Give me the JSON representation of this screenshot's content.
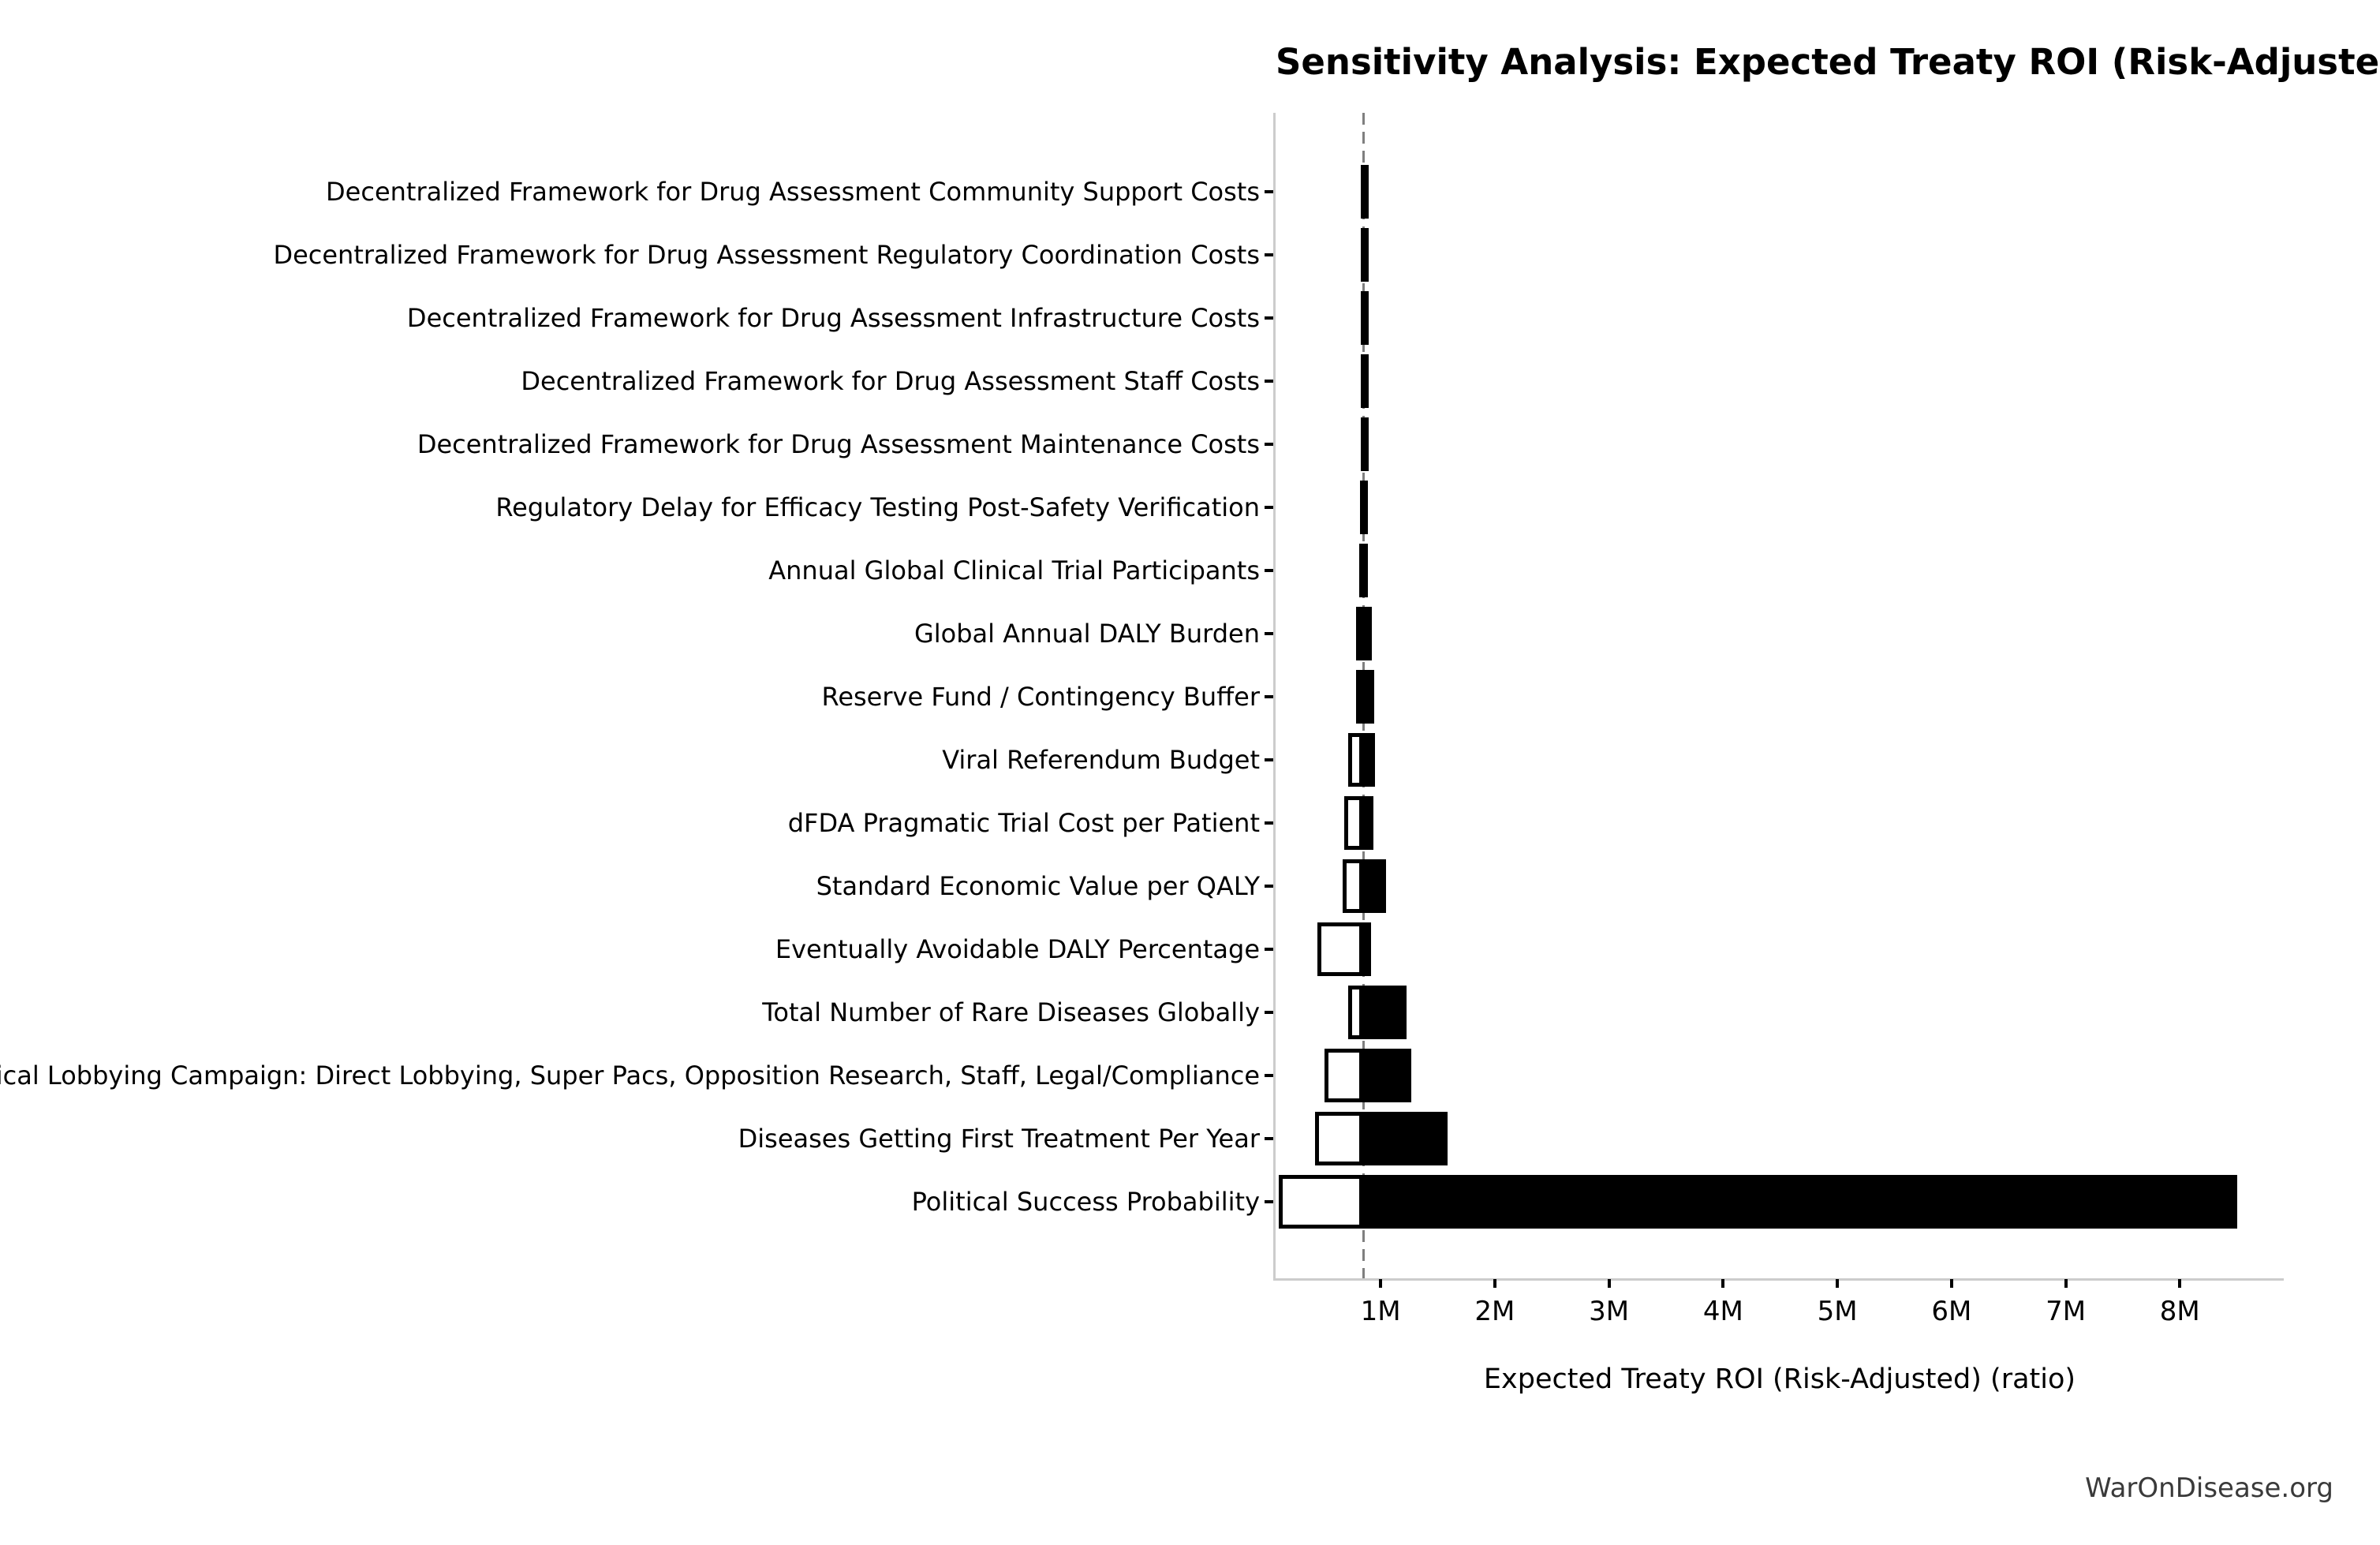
{
  "title": "Sensitivity Analysis: Expected Treaty ROI (Risk-Adjusted)",
  "footer": "WarOnDisease.org",
  "chart_data": {
    "type": "bar",
    "subtype": "tornado-sensitivity",
    "title": "Sensitivity Analysis: Expected Treaty ROI (Risk-Adjusted)",
    "xlabel": "Expected Treaty ROI (Risk-Adjusted) (ratio)",
    "ylabel": "",
    "unit": "M",
    "baseline": 0.85,
    "xlim": [
      0.08,
      8.91
    ],
    "grid": false,
    "legend": null,
    "xticks": [
      {
        "value": 1,
        "label": "1M"
      },
      {
        "value": 2,
        "label": "2M"
      },
      {
        "value": 3,
        "label": "3M"
      },
      {
        "value": 4,
        "label": "4M"
      },
      {
        "value": 5,
        "label": "5M"
      },
      {
        "value": 6,
        "label": "6M"
      },
      {
        "value": 7,
        "label": "7M"
      },
      {
        "value": 8,
        "label": "8M"
      }
    ],
    "categories": [
      "Decentralized Framework for Drug Assessment Community Support Costs",
      "Decentralized Framework for Drug Assessment Regulatory Coordination Costs",
      "Decentralized Framework for Drug Assessment Infrastructure Costs",
      "Decentralized Framework for Drug Assessment Staff Costs",
      "Decentralized Framework for Drug Assessment Maintenance Costs",
      "Regulatory Delay for Efficacy Testing Post-Safety Verification",
      "Annual Global Clinical Trial Participants",
      "Global Annual DALY Burden",
      "Reserve Fund / Contingency Buffer",
      "Viral Referendum Budget",
      "dFDA Pragmatic Trial Cost per Patient",
      "Standard Economic Value per QALY",
      "Eventually Avoidable DALY Percentage",
      "Total Number of Rare Diseases Globally",
      "Political Lobbying Campaign: Direct Lobbying, Super Pacs, Opposition Research, Staff, Legal/Compliance",
      "Diseases Getting First Treatment Per Year",
      "Political Success Probability"
    ],
    "series": [
      {
        "name": "low",
        "values": [
          0.828,
          0.827,
          0.826,
          0.825,
          0.824,
          0.82,
          0.811,
          0.788,
          0.788,
          0.719,
          0.678,
          0.666,
          0.443,
          0.719,
          0.505,
          0.425,
          0.109
        ]
      },
      {
        "name": "high",
        "values": [
          0.872,
          0.873,
          0.874,
          0.875,
          0.876,
          0.88,
          0.885,
          0.92,
          0.943,
          0.954,
          0.938,
          1.046,
          0.919,
          1.226,
          1.271,
          1.587,
          8.5
        ]
      }
    ],
    "colors": {
      "low_fill": "#ffffff",
      "high_fill": "#000000",
      "bar_edge": "#000000",
      "baseline_line": "#7f7f7f",
      "spine": "#cccccc",
      "text": "#000000",
      "footer_text": "#3a3a3a"
    }
  }
}
